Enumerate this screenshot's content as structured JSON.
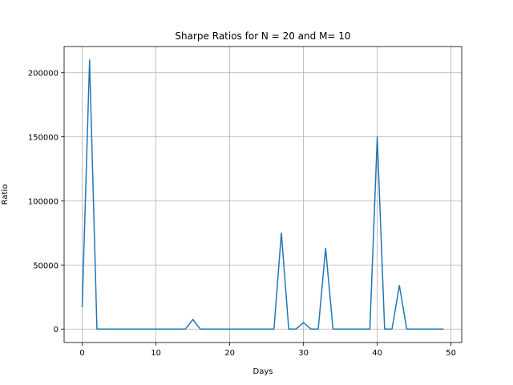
{
  "chart_data": {
    "type": "line",
    "title": "Sharpe Ratios for N = 20 and M= 10",
    "xlabel": "Days",
    "ylabel": "Ratio",
    "xlim": [
      -2.45,
      51.45
    ],
    "ylim": [
      -10500,
      220500
    ],
    "xticks": [
      0,
      10,
      20,
      30,
      40,
      50
    ],
    "yticks": [
      0,
      50000,
      100000,
      150000,
      200000
    ],
    "grid": true,
    "colors": {
      "line": "#1f77b4",
      "grid": "#b0b0b0",
      "axes": "#000000"
    },
    "series": [
      {
        "x": [
          0,
          1,
          2,
          3,
          4,
          5,
          6,
          7,
          8,
          9,
          10,
          11,
          12,
          13,
          14,
          15,
          16,
          17,
          18,
          19,
          20,
          21,
          22,
          23,
          24,
          25,
          26,
          27,
          28,
          29,
          30,
          31,
          32,
          33,
          34,
          35,
          36,
          37,
          38,
          39,
          40,
          41,
          42,
          43,
          44,
          45,
          46,
          47,
          48,
          49
        ],
        "values": [
          17000,
          210000,
          0,
          0,
          0,
          0,
          0,
          0,
          0,
          0,
          0,
          0,
          0,
          0,
          0,
          7500,
          0,
          0,
          0,
          0,
          0,
          0,
          0,
          0,
          0,
          0,
          0,
          75000,
          0,
          0,
          5000,
          0,
          0,
          63000,
          0,
          0,
          0,
          0,
          0,
          0,
          150000,
          0,
          0,
          34000,
          0,
          0,
          0,
          0,
          0,
          0
        ]
      }
    ]
  }
}
